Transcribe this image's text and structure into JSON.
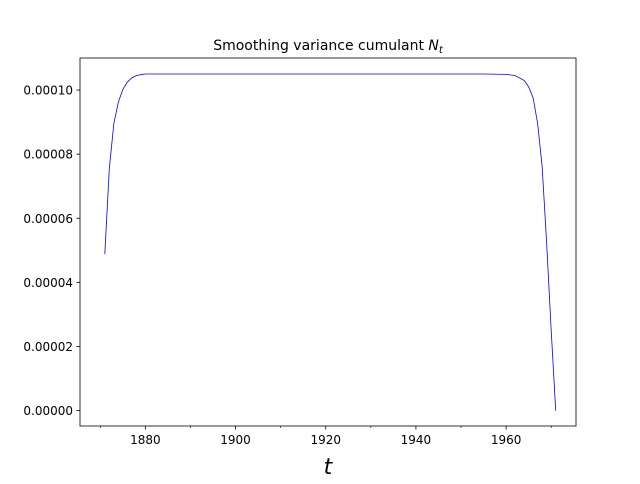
{
  "chart_data": {
    "type": "line",
    "title_main": "Smoothing variance cumulant ",
    "title_var": "N",
    "title_sub": "t",
    "xlabel": "t",
    "ylabel": "",
    "xlim": [
      1865.5,
      1975.5
    ],
    "ylim": [
      -4.8e-06,
      0.00011
    ],
    "x_ticks_major": [
      1880,
      1900,
      1920,
      1940,
      1960
    ],
    "x_tick_labels": [
      "1880",
      "1900",
      "1920",
      "1940",
      "1960"
    ],
    "x_ticks_minor": [
      1870,
      1890,
      1910,
      1930,
      1950,
      1970
    ],
    "y_ticks": [
      0,
      2e-05,
      4e-05,
      6e-05,
      8e-05,
      0.0001
    ],
    "y_tick_labels": [
      "0.00000",
      "0.00002",
      "0.00004",
      "0.00006",
      "0.00008",
      "0.00010"
    ],
    "grid": false,
    "series": [
      {
        "color": "#0000ff",
        "x": [
          1871,
          1872,
          1873,
          1874,
          1875,
          1876,
          1877,
          1878,
          1879,
          1880,
          1882,
          1885,
          1890,
          1900,
          1920,
          1940,
          1955,
          1960,
          1962,
          1964,
          1965,
          1966,
          1967,
          1968,
          1969,
          1970,
          1971
        ],
        "y": [
          4.88e-05,
          7.55e-05,
          8.95e-05,
          9.62e-05,
          0.0001002,
          0.0001025,
          0.0001038,
          0.0001045,
          0.0001048,
          0.000105,
          0.000105,
          0.000105,
          0.000105,
          0.000105,
          0.000105,
          0.000105,
          0.000105,
          0.0001049,
          0.0001045,
          0.000103,
          0.000101,
          9.75e-05,
          8.95e-05,
          7.6e-05,
          5.2e-05,
          2.5e-05,
          0.0
        ]
      }
    ]
  }
}
